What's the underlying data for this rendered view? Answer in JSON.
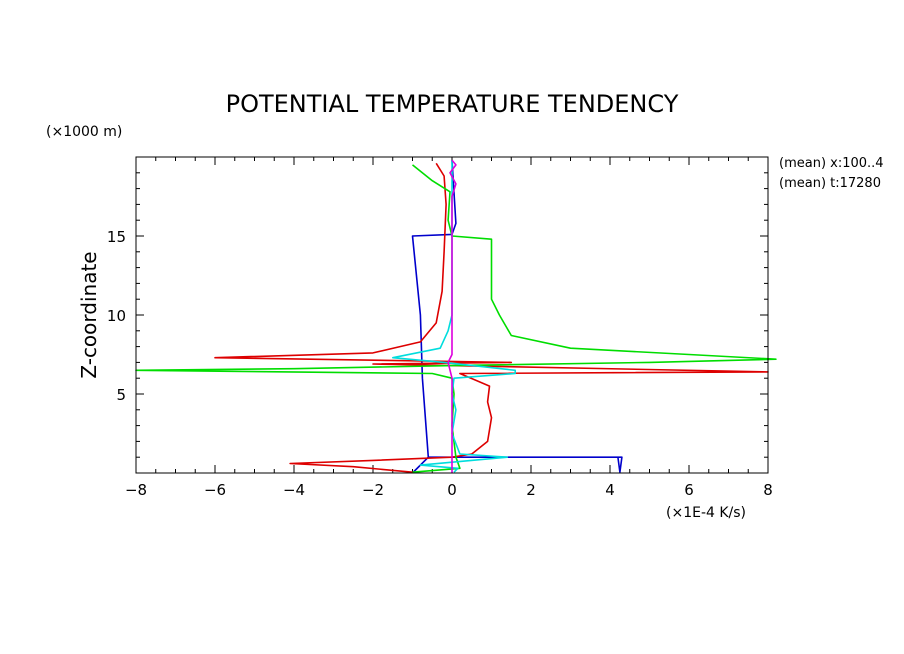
{
  "chart_data": {
    "type": "line",
    "title": "POTENTIAL TEMPERATURE TENDENCY",
    "xlabel": "(×1E-4 K/s)",
    "ylabel": "Z-coordinate",
    "yunit": "(×1000 m)",
    "xlim": [
      -8,
      8
    ],
    "ylim": [
      0,
      20
    ],
    "xticks": [
      -8,
      -6,
      -4,
      -2,
      0,
      2,
      4,
      6,
      8
    ],
    "yticks": [
      5,
      10,
      15
    ],
    "annotations": [
      "(mean) x:100..4",
      "(mean) t:17280"
    ],
    "series": [
      {
        "color": "#0000cc",
        "points": [
          [
            -1.0,
            0
          ],
          [
            -0.6,
            1.0
          ],
          [
            4.2,
            1.0
          ],
          [
            4.25,
            0.05
          ],
          [
            4.3,
            1.0
          ],
          [
            -0.6,
            1.0
          ],
          [
            -0.75,
            6
          ],
          [
            -0.8,
            10
          ],
          [
            -1.0,
            15.0
          ],
          [
            0.0,
            15.1
          ],
          [
            0.1,
            15.8
          ],
          [
            0.0,
            19.8
          ]
        ]
      },
      {
        "color": "#dd0000",
        "points": [
          [
            -1.0,
            0.05
          ],
          [
            -2.5,
            0.4
          ],
          [
            -4.1,
            0.6
          ],
          [
            -2.0,
            0.8
          ],
          [
            0.0,
            1.0
          ],
          [
            0.5,
            1.2
          ],
          [
            0.9,
            2.0
          ],
          [
            1.0,
            3.5
          ],
          [
            0.9,
            4.5
          ],
          [
            0.95,
            5.5
          ],
          [
            0.2,
            6.3
          ],
          [
            8.0,
            6.4
          ],
          [
            -2.0,
            6.9
          ],
          [
            1.5,
            7.0
          ],
          [
            -6.0,
            7.3
          ],
          [
            -2.0,
            7.6
          ],
          [
            -0.8,
            8.3
          ],
          [
            -0.4,
            9.5
          ],
          [
            -0.25,
            11.5
          ],
          [
            -0.2,
            14
          ],
          [
            -0.15,
            17
          ],
          [
            -0.2,
            18.8
          ],
          [
            -0.4,
            19.6
          ]
        ]
      },
      {
        "color": "#00dd00",
        "points": [
          [
            -1.0,
            0.05
          ],
          [
            0.2,
            0.3
          ],
          [
            0.1,
            1.0
          ],
          [
            0.0,
            3
          ],
          [
            0.05,
            5
          ],
          [
            0.0,
            6.0
          ],
          [
            -0.5,
            6.3
          ],
          [
            -8.0,
            6.5
          ],
          [
            -4.0,
            6.6
          ],
          [
            0.0,
            6.8
          ],
          [
            5.0,
            7.0
          ],
          [
            8.2,
            7.2
          ],
          [
            6.0,
            7.5
          ],
          [
            3.0,
            7.9
          ],
          [
            1.5,
            8.7
          ],
          [
            1.2,
            10
          ],
          [
            1.0,
            11
          ],
          [
            1.0,
            14.8
          ],
          [
            0.0,
            15.0
          ],
          [
            -0.1,
            16
          ],
          [
            -0.05,
            17.8
          ],
          [
            -0.5,
            18.5
          ],
          [
            -1.0,
            19.5
          ]
        ]
      },
      {
        "color": "#00dddd",
        "points": [
          [
            0.05,
            0.05
          ],
          [
            0.15,
            0.3
          ],
          [
            -0.8,
            0.5
          ],
          [
            1.4,
            1.0
          ],
          [
            0.2,
            1.2
          ],
          [
            0.0,
            2.5
          ],
          [
            0.1,
            4
          ],
          [
            0.0,
            5
          ],
          [
            0.05,
            6.0
          ],
          [
            1.6,
            6.3
          ],
          [
            1.6,
            6.5
          ],
          [
            -0.2,
            7.0
          ],
          [
            -1.5,
            7.3
          ],
          [
            -0.3,
            7.9
          ],
          [
            -0.1,
            9.0
          ],
          [
            0.0,
            10.0
          ],
          [
            0.0,
            19.8
          ]
        ]
      },
      {
        "color": "#dd00dd",
        "points": [
          [
            0.0,
            0
          ],
          [
            0.0,
            6
          ],
          [
            -0.1,
            7.0
          ],
          [
            0.0,
            7.5
          ],
          [
            0.0,
            17.5
          ],
          [
            0.1,
            18.3
          ],
          [
            -0.05,
            19
          ],
          [
            0.1,
            19.5
          ],
          [
            0.0,
            19.8
          ]
        ]
      }
    ]
  }
}
